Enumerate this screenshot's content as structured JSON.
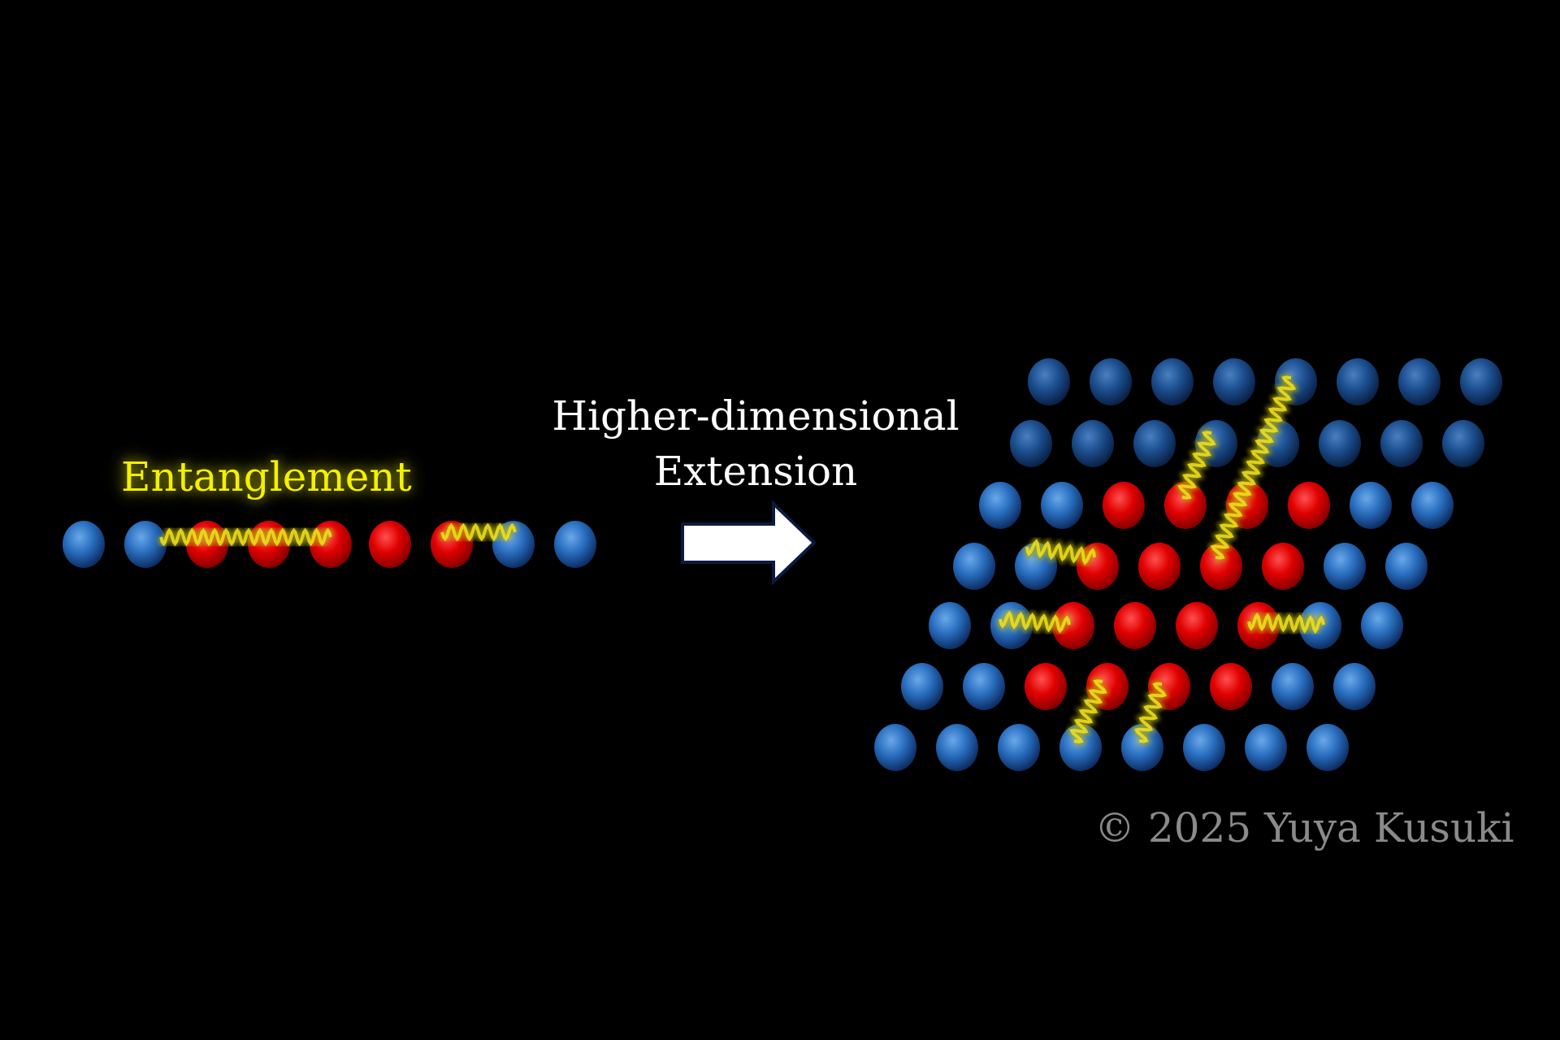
{
  "labels": {
    "entanglement": "Entanglement",
    "title_line1": "Higher-dimensional",
    "title_line2": "Extension",
    "copyright": "© 2025 Yuya Kusuki"
  },
  "colors": {
    "blue": "#2a6fc0",
    "red": "#e00000",
    "entanglement": "#f4f000",
    "arrow_fill": "#ffffff",
    "arrow_border": "#0a1a40"
  },
  "chain_1d": [
    "B",
    "B",
    "R",
    "R",
    "R",
    "R",
    "R",
    "B",
    "B"
  ],
  "lattice_2d": [
    "BBBBBBBB",
    "BBBBBBBB",
    "BBRRRRBB",
    "BBRRRRBB",
    "BBRRRRBB",
    "BBRRRRBB",
    "BBBBBBBB"
  ]
}
